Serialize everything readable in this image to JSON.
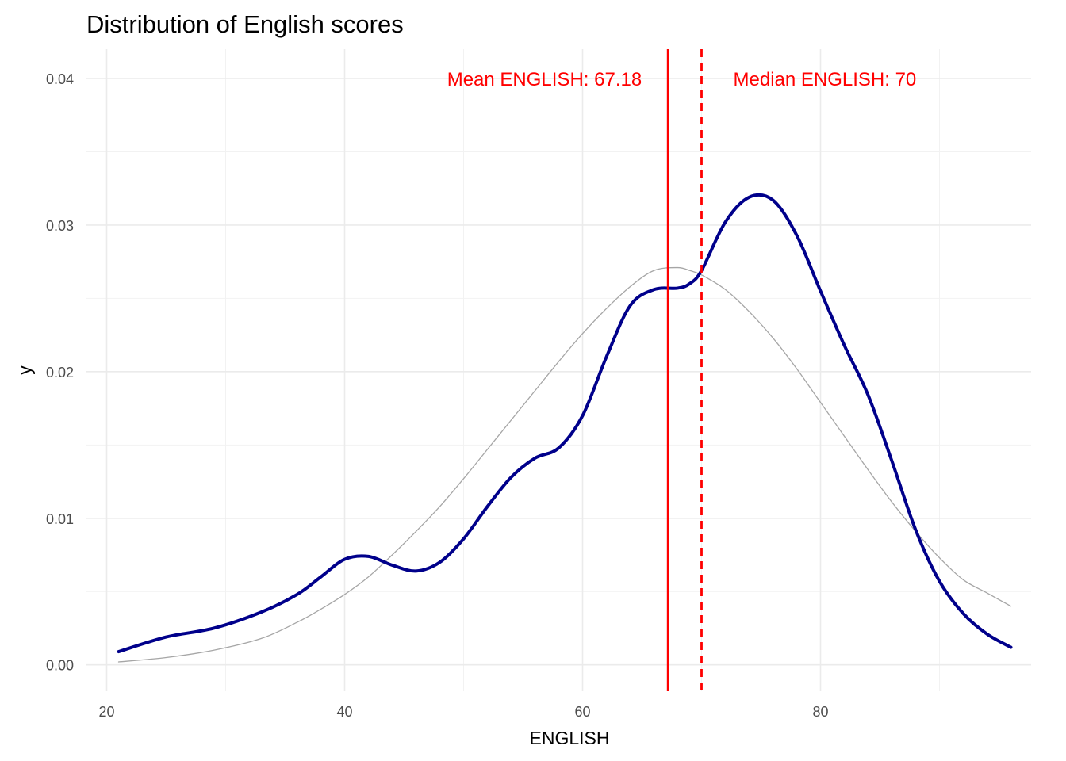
{
  "chart_data": {
    "type": "line",
    "title": "Distribution of English scores",
    "xlabel": "ENGLISH",
    "ylabel": "y",
    "xlim": [
      18.3,
      97.7
    ],
    "ylim": [
      -0.0018,
      0.042
    ],
    "x_ticks": [
      20,
      40,
      60,
      80
    ],
    "x_tick_labels": [
      "20",
      "40",
      "60",
      "80"
    ],
    "y_ticks": [
      0.0,
      0.01,
      0.02,
      0.03,
      0.04
    ],
    "y_tick_labels": [
      "0.00",
      "0.01",
      "0.02",
      "0.03",
      "0.04"
    ],
    "grid": true,
    "legend": "none",
    "series": [
      {
        "role": "kernel-density",
        "color": "#00008b",
        "x": [
          21,
          25,
          29,
          33,
          36,
          38,
          40,
          42,
          44,
          46,
          48,
          50,
          52,
          54,
          56,
          58,
          60,
          62,
          64,
          66,
          68,
          69,
          70,
          72,
          74,
          76,
          78,
          80,
          82,
          84,
          86,
          88,
          90,
          92,
          94,
          96
        ],
        "y": [
          0.0009,
          0.0019,
          0.0025,
          0.0036,
          0.0048,
          0.006,
          0.0072,
          0.0074,
          0.0068,
          0.0064,
          0.007,
          0.0086,
          0.0108,
          0.0128,
          0.0141,
          0.0148,
          0.017,
          0.021,
          0.0245,
          0.0256,
          0.0257,
          0.026,
          0.0269,
          0.0302,
          0.0319,
          0.0317,
          0.0293,
          0.0255,
          0.0218,
          0.0184,
          0.0139,
          0.0092,
          0.0057,
          0.0035,
          0.0021,
          0.0012
        ]
      },
      {
        "role": "normal-density",
        "color": "#a6a6a6",
        "x": [
          21,
          25,
          29,
          33,
          36,
          38,
          40,
          42,
          44,
          46,
          48,
          50,
          52,
          54,
          56,
          58,
          60,
          62,
          64,
          66,
          68,
          69,
          70,
          72,
          74,
          76,
          78,
          80,
          82,
          84,
          86,
          88,
          90,
          92,
          94,
          96
        ],
        "y": [
          0.0002,
          0.0005,
          0.001,
          0.0018,
          0.0029,
          0.0038,
          0.0048,
          0.006,
          0.0075,
          0.0091,
          0.0108,
          0.0127,
          0.0147,
          0.0167,
          0.0187,
          0.0207,
          0.0226,
          0.0243,
          0.0258,
          0.0269,
          0.0271,
          0.0269,
          0.0266,
          0.0256,
          0.0241,
          0.0223,
          0.0202,
          0.0179,
          0.0156,
          0.0133,
          0.0111,
          0.0091,
          0.0073,
          0.0058,
          0.0049,
          0.004
        ]
      }
    ],
    "vlines": [
      {
        "x": 67.18,
        "style": "solid",
        "color": "#ff0000",
        "label": "Mean ENGLISH: 67.18",
        "label_side": "left"
      },
      {
        "x": 70,
        "style": "dashed",
        "color": "#ff0000",
        "label": "Median ENGLISH: 70",
        "label_side": "right"
      }
    ]
  }
}
